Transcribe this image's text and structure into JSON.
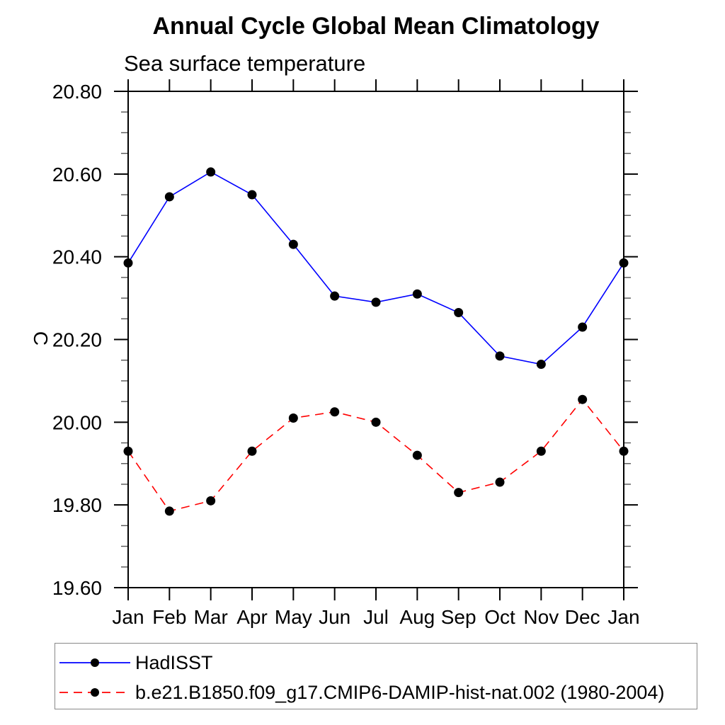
{
  "title": "Annual Cycle Global Mean Climatology",
  "subtitle": "Sea surface temperature",
  "y_axis_label": "C",
  "legend": {
    "entries": [
      {
        "label": "HadISST",
        "color": "#0000ff",
        "style": "solid",
        "marker": "filled-circle",
        "marker_color": "#000000"
      },
      {
        "label": "b.e21.B1850.f09_g17.CMIP6-DAMIP-hist-nat.002 (1980-2004)",
        "color": "#ff0000",
        "style": "dashed",
        "marker": "filled-circle",
        "marker_color": "#000000"
      }
    ]
  },
  "chart_data": {
    "type": "line",
    "title": "Annual Cycle Global Mean Climatology",
    "subtitle": "Sea surface temperature",
    "xlabel": "",
    "ylabel": "C",
    "categories": [
      "Jan",
      "Feb",
      "Mar",
      "Apr",
      "May",
      "Jun",
      "Jul",
      "Aug",
      "Sep",
      "Oct",
      "Nov",
      "Dec",
      "Jan"
    ],
    "series": [
      {
        "name": "HadISST",
        "color": "#0000ff",
        "line_style": "solid",
        "marker": "filled-circle",
        "marker_color": "#000000",
        "values": [
          20.385,
          20.545,
          20.605,
          20.55,
          20.43,
          20.305,
          20.29,
          20.31,
          20.265,
          20.16,
          20.14,
          20.23,
          20.385
        ]
      },
      {
        "name": "b.e21.B1850.f09_g17.CMIP6-DAMIP-hist-nat.002 (1980-2004)",
        "color": "#ff0000",
        "line_style": "dashed",
        "marker": "filled-circle",
        "marker_color": "#000000",
        "values": [
          19.93,
          19.785,
          19.81,
          19.93,
          20.01,
          20.025,
          20.0,
          19.92,
          19.83,
          19.855,
          19.93,
          20.055,
          19.93
        ]
      }
    ],
    "ylim": [
      19.6,
      20.8
    ],
    "ytick_step": 0.2,
    "yminor_step": 0.05,
    "ytick_labels": [
      "19.60",
      "19.80",
      "20.00",
      "20.20",
      "20.40",
      "20.60",
      "20.80"
    ],
    "grid": false,
    "legend_position": "bottom-left"
  }
}
